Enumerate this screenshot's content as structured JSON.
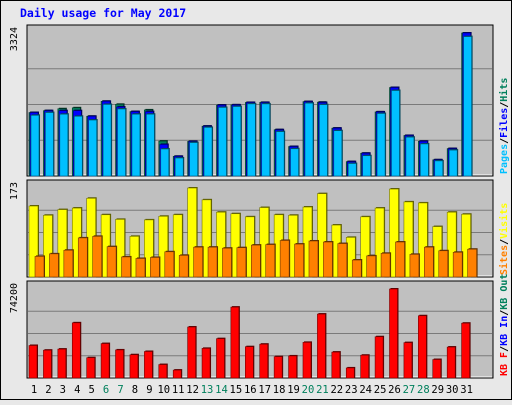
{
  "chart_data": {
    "type": "bar",
    "title": "Daily usage for May 2017",
    "colors": {
      "background": "#e8e8e8",
      "panel": "#c0c0c0",
      "title": "#0000ff",
      "hits": "#00805c",
      "files": "#0000ff",
      "pages": "#00c0ff",
      "visits": "#ffff00",
      "sites": "#ff8000",
      "kb": "#ff0000",
      "kb_in": "#0000ff",
      "kb_out": "#00805c",
      "weekend": "#00805c",
      "weekday": "#000000"
    },
    "categories": [
      "1",
      "2",
      "3",
      "4",
      "5",
      "6",
      "7",
      "8",
      "9",
      "10",
      "11",
      "12",
      "13",
      "14",
      "15",
      "16",
      "17",
      "18",
      "19",
      "20",
      "21",
      "22",
      "23",
      "24",
      "25",
      "26",
      "27",
      "28",
      "29",
      "30",
      "31"
    ],
    "weekend_days": [
      6,
      7,
      13,
      14,
      20,
      21,
      27,
      28
    ],
    "panels": [
      {
        "ymax_label": "3324",
        "ymax": 3324,
        "legend": [
          {
            "text": "Pages",
            "color": "#00c0ff"
          },
          {
            "text": "/",
            "color": "#000000"
          },
          {
            "text": "Files",
            "color": "#0000ff"
          },
          {
            "text": "/",
            "color": "#000000"
          },
          {
            "text": "Hits",
            "color": "#00805c"
          }
        ],
        "series": [
          {
            "name": "Hits",
            "color": "#00805c",
            "values": [
              1475,
              1519,
              1563,
              1585,
              1388,
              1736,
              1666,
              1497,
              1536,
              811,
              457,
              804,
              1158,
              1648,
              1653,
              1709,
              1711,
              1076,
              685,
              1729,
              1716,
              1112,
              334,
              529,
              1490,
              2057,
              942,
              807,
              376,
              637,
              3324
            ]
          },
          {
            "name": "Files",
            "color": "#0000ff",
            "values": [
              1475,
              1519,
              1519,
              1519,
              1388,
              1736,
              1605,
              1497,
              1497,
              733,
              457,
              804,
              1158,
              1648,
              1653,
              1709,
              1709,
              1076,
              685,
              1729,
              1709,
              1112,
              334,
              529,
              1490,
              2057,
              942,
              807,
              376,
              637,
              3324
            ]
          },
          {
            "name": "Pages",
            "color": "#00c0ff",
            "values": [
              1410,
              1475,
              1436,
              1388,
              1301,
              1663,
              1558,
              1436,
              1436,
              628,
              418,
              777,
              1129,
              1593,
              1615,
              1676,
              1676,
              1032,
              633,
              1693,
              1658,
              1053,
              290,
              471,
              1453,
              1987,
              902,
              745,
              351,
              602,
              3240
            ]
          }
        ]
      },
      {
        "ymax_label": "173",
        "ymax": 173,
        "legend": [
          {
            "text": "Sites",
            "color": "#ff8000"
          },
          {
            "text": "/",
            "color": "#000000"
          },
          {
            "text": "Visits",
            "color": "#ffff00"
          }
        ],
        "series": [
          {
            "name": "Visits",
            "color": "#ffff00",
            "values": [
              138,
              120,
              131,
              134,
              153,
              121,
              112,
              79,
              111,
              118,
              121,
              173,
              150,
              126,
              123,
              117,
              135,
              121,
              120,
              136,
              162,
              101,
              77,
              117,
              134,
              171,
              146,
              144,
              98,
              126,
              122
            ]
          },
          {
            "name": "Sites",
            "color": "#ff8000",
            "values": [
              40,
              45,
              52,
              76,
              79,
              59,
              39,
              36,
              38,
              49,
              42,
              58,
              58,
              56,
              57,
              62,
              63,
              71,
              64,
              70,
              68,
              65,
              33,
              41,
              46,
              68,
              44,
              58,
              51,
              48,
              54
            ]
          }
        ]
      },
      {
        "ymax_label": "74200",
        "ymax": 74200,
        "legend": [
          {
            "text": "KB F",
            "color": "#ff0000"
          },
          {
            "text": "/",
            "color": "#000000"
          },
          {
            "text": "KB In",
            "color": "#0000ff"
          },
          {
            "text": "/",
            "color": "#000000"
          },
          {
            "text": "KB Out",
            "color": "#00805c"
          }
        ],
        "series": [
          {
            "name": "KB F",
            "color": "#ff0000",
            "values": [
              27100,
              23200,
              24100,
              46000,
              16900,
              28700,
              23400,
              19400,
              22100,
              11200,
              6600,
              42500,
              24700,
              32800,
              59100,
              26100,
              28200,
              17800,
              18400,
              29700,
              53300,
              21600,
              8400,
              19000,
              34400,
              74200,
              29500,
              51900,
              15400,
              25800,
              45700
            ]
          }
        ]
      }
    ]
  }
}
